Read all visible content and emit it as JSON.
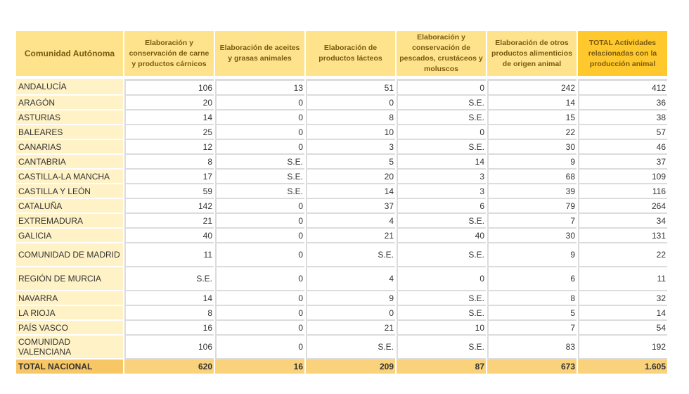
{
  "headers": [
    "Comunidad Autónoma",
    "Elaboración y conservación de carne y productos cárnicos",
    "Elaboración de aceites y grasas animales",
    "Elaboración de productos lácteos",
    "Elaboración y conservación de pescados, crustáceos y moluscos",
    "Elaboración de otros productos alimenticios de origen animal",
    "TOTAL Actividades relacionadas con la producción animal"
  ],
  "rows": [
    {
      "name": "ANDALUCÍA",
      "values": [
        "106",
        "13",
        "51",
        "0",
        "242",
        "412"
      ]
    },
    {
      "name": "ARAGÓN",
      "values": [
        "20",
        "0",
        "0",
        "S.E.",
        "14",
        "36"
      ]
    },
    {
      "name": "ASTURIAS",
      "values": [
        "14",
        "0",
        "8",
        "S.E.",
        "15",
        "38"
      ]
    },
    {
      "name": "BALEARES",
      "values": [
        "25",
        "0",
        "10",
        "0",
        "22",
        "57"
      ]
    },
    {
      "name": "CANARIAS",
      "values": [
        "12",
        "0",
        "3",
        "S.E.",
        "30",
        "46"
      ]
    },
    {
      "name": "CANTABRIA",
      "values": [
        "8",
        "S.E.",
        "5",
        "14",
        "9",
        "37"
      ]
    },
    {
      "name": "CASTILLA-LA MANCHA",
      "values": [
        "17",
        "S.E.",
        "20",
        "3",
        "68",
        "109"
      ]
    },
    {
      "name": "CASTILLA Y LEÓN",
      "values": [
        "59",
        "S.E.",
        "14",
        "3",
        "39",
        "116"
      ]
    },
    {
      "name": "CATALUÑA",
      "values": [
        "142",
        "0",
        "37",
        "6",
        "79",
        "264"
      ]
    },
    {
      "name": "EXTREMADURA",
      "values": [
        "21",
        "0",
        "4",
        "S.E.",
        "7",
        "34"
      ]
    },
    {
      "name": "GALICIA",
      "values": [
        "40",
        "0",
        "21",
        "40",
        "30",
        "131"
      ]
    },
    {
      "name": "COMUNIDAD DE MADRID",
      "values": [
        "11",
        "0",
        "S.E.",
        "S.E.",
        "9",
        "22"
      ],
      "tall": true
    },
    {
      "name": "REGIÓN DE MURCIA",
      "values": [
        "S.E.",
        "0",
        "4",
        "0",
        "6",
        "11"
      ],
      "tall": true
    },
    {
      "name": "NAVARRA",
      "values": [
        "14",
        "0",
        "9",
        "S.E.",
        "8",
        "32"
      ]
    },
    {
      "name": "LA RIOJA",
      "values": [
        "8",
        "0",
        "0",
        "S.E.",
        "5",
        "14"
      ]
    },
    {
      "name": "PAÍS VASCO",
      "values": [
        "16",
        "0",
        "21",
        "10",
        "7",
        "54"
      ]
    },
    {
      "name": "COMUNIDAD VALENCIANA",
      "values": [
        "106",
        "0",
        "S.E.",
        "S.E.",
        "83",
        "192"
      ],
      "tall": true
    }
  ],
  "total": {
    "name": "TOTAL NACIONAL",
    "values": [
      "620",
      "16",
      "209",
      "87",
      "673",
      "1.605"
    ]
  }
}
